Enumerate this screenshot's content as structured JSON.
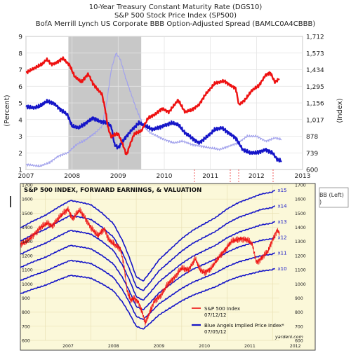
{
  "chart_data": [
    {
      "type": "line",
      "title": [
        "10-Year Treasury Constant Maturity Rate (DGS10)",
        "S&P 500 Stock Price Index (SP500)",
        "BofA Merrill Lynch US Corporate BBB Option-Adjusted Spread (BAMLC0A4CBBB)"
      ],
      "ylabel_left": "(Percent)",
      "ylabel_right": "(Index)",
      "x_ticks": [
        "2007",
        "2008",
        "2009",
        "2010",
        "2011",
        "2012",
        "2013"
      ],
      "x_range": [
        2007,
        2013
      ],
      "y_left_ticks": [
        "1",
        "2",
        "3",
        "4",
        "5",
        "6",
        "7",
        "8",
        "9"
      ],
      "y_left_range": [
        1,
        9
      ],
      "y_right_ticks": [
        "600",
        "739",
        "878",
        "1,017",
        "1,156",
        "1,295",
        "1,434",
        "1,573",
        "1,712"
      ],
      "y_right_range": [
        600,
        1712
      ],
      "recession": [
        2007.92,
        2009.5
      ],
      "series": [
        {
          "color": "#ee1111",
          "axis": "right",
          "x": [
            2007.0,
            2007.2,
            2007.35,
            2007.45,
            2007.55,
            2007.65,
            2007.8,
            2007.95,
            2008.05,
            2008.2,
            2008.35,
            2008.45,
            2008.55,
            2008.65,
            2008.72,
            2008.78,
            2008.85,
            2008.92,
            2009.0,
            2009.1,
            2009.18,
            2009.25,
            2009.35,
            2009.5,
            2009.65,
            2009.8,
            2009.95,
            2010.1,
            2010.3,
            2010.45,
            2010.6,
            2010.75,
            2010.9,
            2011.1,
            2011.3,
            2011.45,
            2011.55,
            2011.62,
            2011.75,
            2011.9,
            2012.05,
            2012.2,
            2012.3,
            2012.4,
            2012.5
          ],
          "y": [
            1410,
            1450,
            1480,
            1520,
            1480,
            1490,
            1530,
            1470,
            1380,
            1330,
            1400,
            1320,
            1270,
            1230,
            1100,
            950,
            870,
            890,
            900,
            810,
            720,
            800,
            900,
            920,
            1030,
            1060,
            1110,
            1080,
            1180,
            1080,
            1100,
            1140,
            1230,
            1320,
            1340,
            1300,
            1280,
            1140,
            1180,
            1260,
            1300,
            1390,
            1410,
            1330,
            1360
          ]
        },
        {
          "color": "#1515c8",
          "axis": "left",
          "x": [
            2007.0,
            2007.15,
            2007.3,
            2007.45,
            2007.6,
            2007.75,
            2007.9,
            2008.0,
            2008.15,
            2008.3,
            2008.45,
            2008.6,
            2008.75,
            2008.85,
            2008.92,
            2009.0,
            2009.15,
            2009.3,
            2009.45,
            2009.6,
            2009.75,
            2009.95,
            2010.15,
            2010.3,
            2010.45,
            2010.6,
            2010.75,
            2010.9,
            2011.1,
            2011.25,
            2011.4,
            2011.55,
            2011.7,
            2011.85,
            2012.0,
            2012.2,
            2012.35,
            2012.45,
            2012.55
          ],
          "y": [
            4.8,
            4.7,
            4.8,
            5.1,
            5.0,
            4.6,
            4.3,
            3.6,
            3.5,
            3.8,
            4.1,
            3.9,
            3.8,
            3.6,
            2.5,
            2.3,
            2.9,
            3.4,
            3.8,
            3.6,
            3.4,
            3.6,
            3.8,
            3.7,
            3.2,
            2.9,
            2.6,
            2.9,
            3.4,
            3.5,
            3.2,
            2.9,
            2.2,
            2.0,
            2.0,
            2.2,
            2.0,
            1.6,
            1.5
          ]
        },
        {
          "color": "#a2a2ec",
          "axis": "left",
          "x": [
            2007.0,
            2007.3,
            2007.5,
            2007.7,
            2007.9,
            2008.1,
            2008.3,
            2008.5,
            2008.65,
            2008.75,
            2008.85,
            2008.95,
            2009.05,
            2009.15,
            2009.25,
            2009.4,
            2009.55,
            2009.7,
            2009.85,
            2010.0,
            2010.2,
            2010.4,
            2010.6,
            2010.8,
            2011.0,
            2011.2,
            2011.4,
            2011.6,
            2011.8,
            2012.0,
            2012.2,
            2012.4,
            2012.55
          ],
          "y": [
            1.3,
            1.2,
            1.4,
            1.8,
            2.0,
            2.5,
            2.8,
            3.2,
            3.6,
            5.0,
            7.0,
            8.0,
            7.6,
            6.6,
            5.8,
            4.6,
            3.6,
            3.2,
            3.0,
            2.8,
            2.6,
            2.7,
            2.5,
            2.4,
            2.3,
            2.2,
            2.4,
            2.6,
            3.0,
            3.0,
            2.7,
            2.9,
            2.8
          ]
        }
      ]
    },
    {
      "type": "line",
      "title": "S&P 500 INDEX, FORWARD EARNINGS, & VALUATION",
      "x_ticks": [
        "2007",
        "2008",
        "2009",
        "2010",
        "2011",
        "2012"
      ],
      "x_range": [
        2006.45,
        2012.15
      ],
      "y_ticks": [
        "600",
        "700",
        "800",
        "900",
        "1000",
        "1100",
        "1200",
        "1300",
        "1400",
        "1500",
        "1600",
        "1700"
      ],
      "y_range": [
        600,
        1700
      ],
      "multiples": [
        "x10",
        "x11",
        "x12",
        "x13",
        "x14",
        "x15"
      ],
      "forward_eps": {
        "x": [
          2006.45,
          2006.7,
          2007.0,
          2007.3,
          2007.55,
          2007.8,
          2008.0,
          2008.25,
          2008.5,
          2008.7,
          2008.85,
          2009.0,
          2009.15,
          2009.3,
          2009.5,
          2009.75,
          2010.0,
          2010.25,
          2010.5,
          2010.75,
          2011.0,
          2011.25,
          2011.5,
          2011.75,
          2012.0,
          2012.05
        ],
        "y": [
          93,
          96,
          99,
          103,
          106,
          105,
          104,
          100,
          95,
          87,
          79,
          70,
          68,
          72,
          78,
          83,
          88,
          92,
          95,
          98,
          102,
          105,
          107,
          109,
          110,
          111
        ]
      },
      "series": [
        {
          "name": "S&P 500 Index",
          "color": "#ee1111",
          "x": [
            2006.45,
            2006.6,
            2006.75,
            2006.9,
            2007.05,
            2007.15,
            2007.25,
            2007.4,
            2007.5,
            2007.6,
            2007.75,
            2007.85,
            2008.0,
            2008.15,
            2008.3,
            2008.4,
            2008.55,
            2008.65,
            2008.72,
            2008.8,
            2008.88,
            2008.95,
            2009.05,
            2009.15,
            2009.2,
            2009.3,
            2009.4,
            2009.55,
            2009.7,
            2009.85,
            2010.0,
            2010.15,
            2010.3,
            2010.4,
            2010.5,
            2010.65,
            2010.8,
            2010.95,
            2011.1,
            2011.3,
            2011.45,
            2011.55,
            2011.65,
            2011.75,
            2011.9,
            2012.0,
            2012.1,
            2012.15
          ],
          "y": [
            1280,
            1300,
            1350,
            1400,
            1430,
            1410,
            1450,
            1500,
            1530,
            1460,
            1520,
            1480,
            1400,
            1340,
            1390,
            1310,
            1270,
            1250,
            1150,
            950,
            880,
            900,
            870,
            780,
            720,
            800,
            880,
            920,
            1000,
            1050,
            1110,
            1100,
            1180,
            1100,
            1080,
            1110,
            1180,
            1240,
            1300,
            1320,
            1310,
            1280,
            1150,
            1180,
            1230,
            1310,
            1380,
            1360
          ]
        }
      ],
      "legend": {
        "items": [
          {
            "label": "S&P 500 Index",
            "date": "07/12/12",
            "color": "#ee1111"
          },
          {
            "label": "Blue Angels Implied Price Index*",
            "date": "07/05/12",
            "color": "#1515c8"
          }
        ]
      },
      "credit": "yardeni.com"
    }
  ],
  "behind_text": {
    "right_a": "BB (Left)",
    "right_b": ")"
  },
  "overlay_bg": "#fbf8d9",
  "recession_color": "#c8c8c8"
}
